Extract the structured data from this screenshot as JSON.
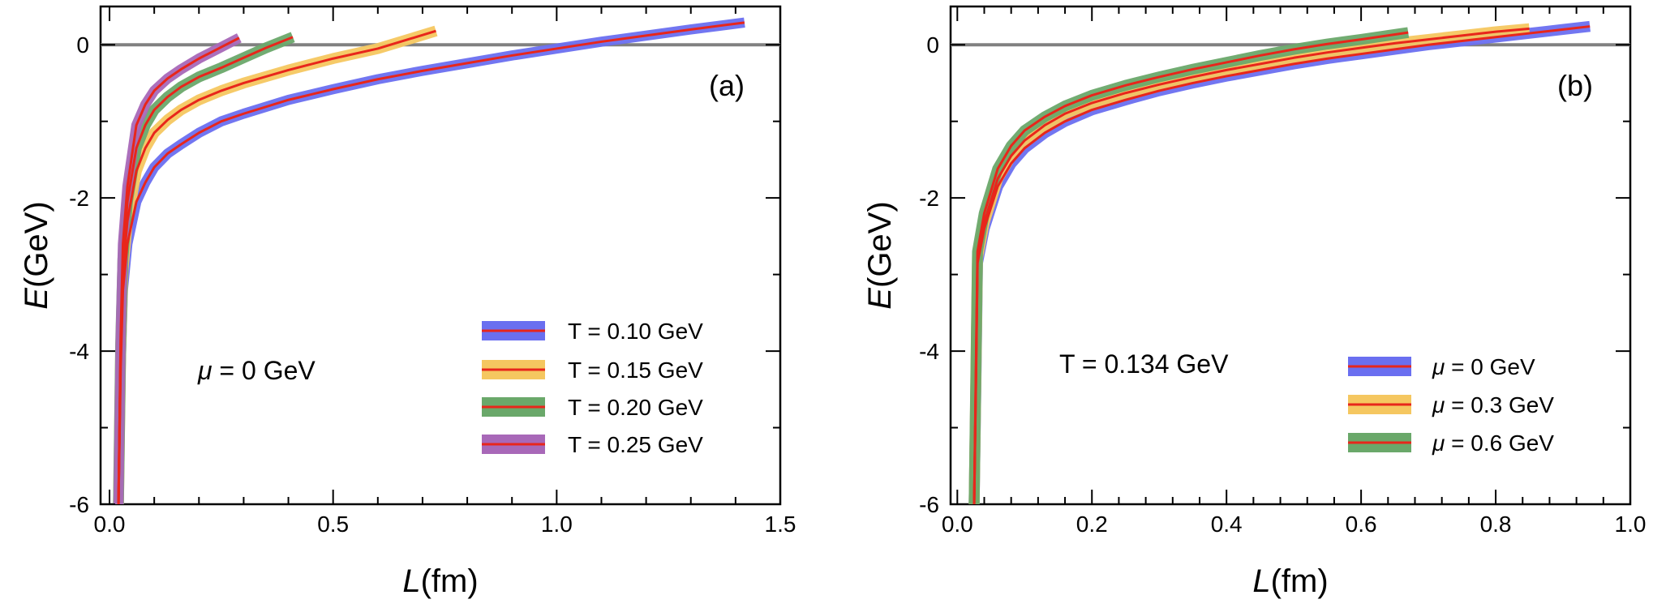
{
  "chart_data": [
    {
      "type": "line",
      "panel": "(a)",
      "xlabel_var": "L",
      "xlabel_unit": "(fm)",
      "ylabel_var": "E",
      "ylabel_unit": "(GeV)",
      "xlim": [
        -0.02,
        1.5
      ],
      "ylim": [
        -6,
        0.5
      ],
      "xticks": [
        0.0,
        0.5,
        1.0,
        1.5
      ],
      "xtick_labels": [
        "0.0",
        "0.5",
        "1.0",
        "1.5"
      ],
      "yticks": [
        -6,
        -4,
        -2,
        0
      ],
      "ytick_labels": [
        "-6",
        "-4",
        "-2",
        "0"
      ],
      "reference_line": 0,
      "annotation_var": "μ",
      "annotation_text": " = 0 GeV",
      "series": [
        {
          "name": "T = 0.10 GeV",
          "band_color": "#6a6ff0",
          "line_color": "#e8261b",
          "band_width": 0.045,
          "x": [
            0.02,
            0.025,
            0.03,
            0.04,
            0.06,
            0.08,
            0.1,
            0.13,
            0.16,
            0.2,
            0.25,
            0.3,
            0.4,
            0.5,
            0.6,
            0.7,
            0.8,
            0.9,
            1.0,
            1.1,
            1.2,
            1.3,
            1.42
          ],
          "y": [
            -6.0,
            -4.2,
            -3.2,
            -2.6,
            -2.05,
            -1.8,
            -1.6,
            -1.42,
            -1.3,
            -1.15,
            -1.0,
            -0.9,
            -0.72,
            -0.58,
            -0.45,
            -0.34,
            -0.24,
            -0.14,
            -0.05,
            0.04,
            0.12,
            0.2,
            0.29
          ]
        },
        {
          "name": "T = 0.15 GeV",
          "band_color": "#f5c760",
          "line_color": "#e8261b",
          "band_width": 0.05,
          "x": [
            0.02,
            0.025,
            0.03,
            0.04,
            0.06,
            0.08,
            0.1,
            0.13,
            0.16,
            0.2,
            0.25,
            0.3,
            0.4,
            0.5,
            0.6,
            0.73
          ],
          "y": [
            -6.0,
            -4.0,
            -2.95,
            -2.3,
            -1.65,
            -1.35,
            -1.15,
            -0.98,
            -0.85,
            -0.72,
            -0.6,
            -0.5,
            -0.33,
            -0.18,
            -0.05,
            0.18
          ]
        },
        {
          "name": "T = 0.20 GeV",
          "band_color": "#6aa86a",
          "line_color": "#e8261b",
          "band_width": 0.05,
          "x": [
            0.02,
            0.025,
            0.03,
            0.04,
            0.06,
            0.08,
            0.1,
            0.13,
            0.16,
            0.2,
            0.25,
            0.3,
            0.35,
            0.41
          ],
          "y": [
            -6.0,
            -3.9,
            -2.8,
            -2.05,
            -1.35,
            -1.05,
            -0.85,
            -0.68,
            -0.55,
            -0.42,
            -0.3,
            -0.17,
            -0.04,
            0.1
          ]
        },
        {
          "name": "T = 0.25 GeV",
          "band_color": "#a868b8",
          "line_color": "#e8261b",
          "band_width": 0.045,
          "x": [
            0.02,
            0.025,
            0.03,
            0.04,
            0.06,
            0.08,
            0.1,
            0.13,
            0.16,
            0.2,
            0.24,
            0.29
          ],
          "y": [
            -6.0,
            -3.8,
            -2.6,
            -1.85,
            -1.05,
            -0.78,
            -0.6,
            -0.44,
            -0.32,
            -0.18,
            -0.06,
            0.09
          ]
        }
      ]
    },
    {
      "type": "line",
      "panel": "(b)",
      "xlabel_var": "L",
      "xlabel_unit": "(fm)",
      "ylabel_var": "E",
      "ylabel_unit": "(GeV)",
      "xlim": [
        -0.01,
        1.0
      ],
      "ylim": [
        -6,
        0.5
      ],
      "xticks": [
        0.0,
        0.2,
        0.4,
        0.6,
        0.8,
        1.0
      ],
      "xtick_labels": [
        "0.0",
        "0.2",
        "0.4",
        "0.6",
        "0.8",
        "1.0"
      ],
      "yticks": [
        -6,
        -4,
        -2,
        0
      ],
      "ytick_labels": [
        "-6",
        "-4",
        "-2",
        "0"
      ],
      "reference_line": 0,
      "annotation_text": "T = 0.134 GeV",
      "series": [
        {
          "name_var": "μ",
          "name": " = 0 GeV",
          "band_color": "#6a6ff0",
          "line_color": "#e8261b",
          "band_width": 0.05,
          "x": [
            0.025,
            0.028,
            0.03,
            0.04,
            0.06,
            0.08,
            0.1,
            0.13,
            0.16,
            0.2,
            0.25,
            0.3,
            0.35,
            0.4,
            0.45,
            0.5,
            0.55,
            0.6,
            0.65,
            0.7,
            0.75,
            0.8,
            0.85,
            0.9,
            0.94
          ],
          "y": [
            -6.0,
            -4.2,
            -2.85,
            -2.4,
            -1.85,
            -1.55,
            -1.35,
            -1.15,
            -1.0,
            -0.85,
            -0.72,
            -0.6,
            -0.5,
            -0.41,
            -0.33,
            -0.25,
            -0.18,
            -0.12,
            -0.06,
            0.0,
            0.05,
            0.1,
            0.15,
            0.2,
            0.24
          ]
        },
        {
          "name_var": "μ",
          "name": " = 0.3 GeV",
          "band_color": "#f5c760",
          "line_color": "#e8261b",
          "band_width": 0.05,
          "x": [
            0.025,
            0.028,
            0.03,
            0.04,
            0.06,
            0.08,
            0.1,
            0.13,
            0.16,
            0.2,
            0.25,
            0.3,
            0.35,
            0.4,
            0.45,
            0.5,
            0.55,
            0.6,
            0.65,
            0.7,
            0.75,
            0.8,
            0.85
          ],
          "y": [
            -6.0,
            -4.1,
            -2.78,
            -2.32,
            -1.75,
            -1.45,
            -1.25,
            -1.05,
            -0.9,
            -0.76,
            -0.63,
            -0.52,
            -0.42,
            -0.33,
            -0.25,
            -0.17,
            -0.1,
            -0.04,
            0.02,
            0.07,
            0.12,
            0.17,
            0.21
          ]
        },
        {
          "name_var": "μ",
          "name": " = 0.6 GeV",
          "band_color": "#6aa86a",
          "line_color": "#e8261b",
          "band_width": 0.05,
          "x": [
            0.025,
            0.028,
            0.03,
            0.04,
            0.06,
            0.08,
            0.1,
            0.13,
            0.16,
            0.2,
            0.25,
            0.3,
            0.35,
            0.4,
            0.45,
            0.5,
            0.55,
            0.6,
            0.67
          ],
          "y": [
            -6.0,
            -4.0,
            -2.7,
            -2.2,
            -1.62,
            -1.32,
            -1.12,
            -0.94,
            -0.8,
            -0.66,
            -0.53,
            -0.42,
            -0.32,
            -0.23,
            -0.14,
            -0.06,
            0.01,
            0.07,
            0.16
          ]
        }
      ]
    }
  ]
}
